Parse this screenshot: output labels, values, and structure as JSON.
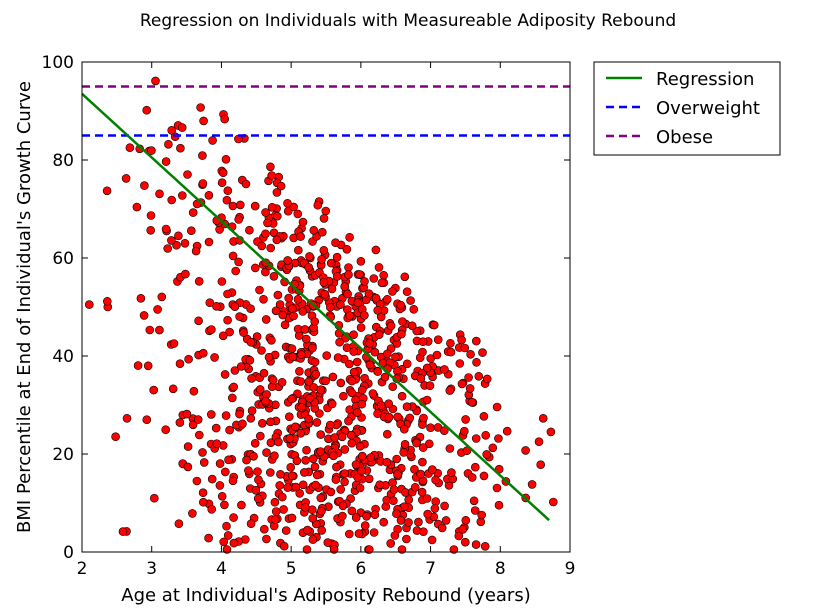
{
  "chart_data": {
    "type": "scatter",
    "title": "Regression on Individuals with Measureable Adiposity Rebound",
    "xlabel": "Age at Individual's Adiposity Rebound (years)",
    "ylabel": "BMI Percentile at End of Individual's Growth Curve",
    "xlim": [
      2,
      9
    ],
    "ylim": [
      0,
      100
    ],
    "x_ticks": [
      "2",
      "3",
      "4",
      "5",
      "6",
      "7",
      "8",
      "9"
    ],
    "y_ticks": [
      "0",
      "20",
      "40",
      "60",
      "80",
      "100"
    ],
    "grid": false,
    "legend_position": "outside-top-right",
    "scatter_series": {
      "marker_color": "#ff0000",
      "edge_color": "#000000",
      "approx_point_count": 1000,
      "description_of_cloud": "dense cloud centered near x=5-6, spanning x 2-8.8, y 0-100"
    },
    "regression": {
      "name": "Regression",
      "color": "#008000",
      "x": [
        2.0,
        8.7
      ],
      "y": [
        93.5,
        6.5
      ]
    },
    "reference_lines": [
      {
        "name": "Overweight",
        "y": 85,
        "color": "#0000ff",
        "style": "dashed"
      },
      {
        "name": "Obese",
        "y": 95,
        "color": "#800080",
        "style": "dashed"
      }
    ],
    "legend": [
      "Regression",
      "Overweight",
      "Obese"
    ]
  }
}
